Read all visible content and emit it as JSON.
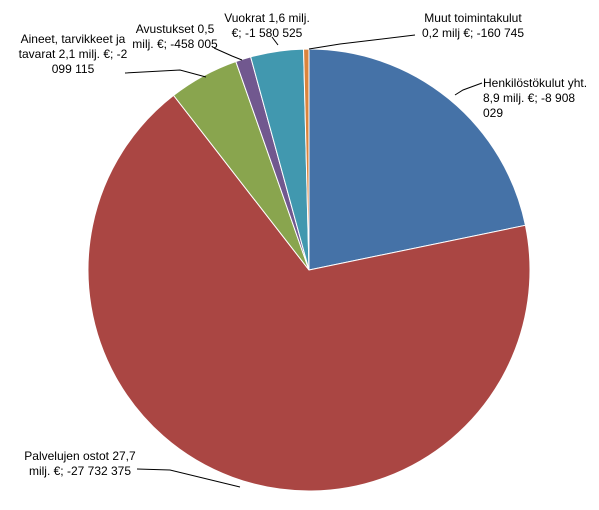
{
  "chart_data": {
    "type": "pie",
    "title": "",
    "slices": [
      {
        "label_lines": [
          "Henkilöstökulut yht.",
          "8,9 milj. €; -8 908",
          "029"
        ],
        "value": 8908029,
        "color": "#4572a7"
      },
      {
        "label_lines": [
          "Palvelujen ostot 27,7",
          "milj. €; -27 732 375"
        ],
        "value": 27732375,
        "color": "#aa4643"
      },
      {
        "label_lines": [
          "Aineet, tarvikkeet ja",
          "tavarat 2,1 milj. €; -2",
          "099 115"
        ],
        "value": 2099115,
        "color": "#89a54e"
      },
      {
        "label_lines": [
          "Avustukset 0,5",
          "milj. €; -458 005"
        ],
        "value": 458005,
        "color": "#71588f"
      },
      {
        "label_lines": [
          "Vuokrat 1,6 milj.",
          "€; -1 580 525"
        ],
        "value": 1580525,
        "color": "#4198af"
      },
      {
        "label_lines": [
          "Muut toimintakulut",
          "0,2 milj €; -160 745"
        ],
        "value": 160745,
        "color": "#db843d"
      }
    ]
  }
}
